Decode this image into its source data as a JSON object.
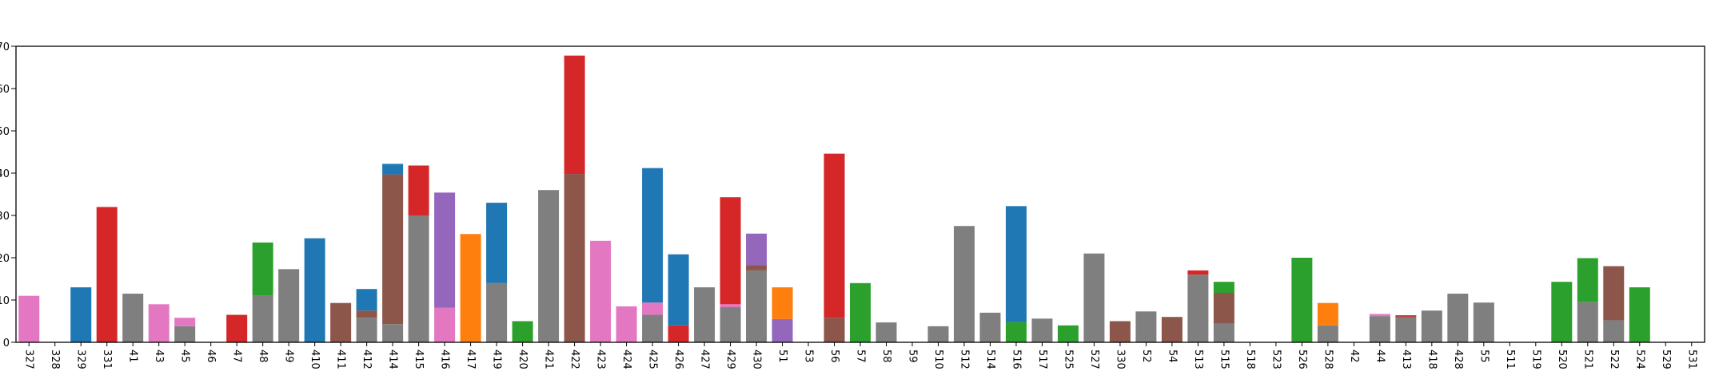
{
  "chart_data": {
    "type": "bar",
    "stacked": true,
    "title": "",
    "xlabel": "",
    "ylabel": "",
    "ylim": [
      0,
      70
    ],
    "y_ticks": [
      0,
      10,
      20,
      30,
      40,
      50,
      60,
      70
    ],
    "grid": false,
    "legend": "none",
    "categories": [
      "327",
      "328",
      "329",
      "331",
      "41",
      "43",
      "45",
      "46",
      "47",
      "48",
      "49",
      "410",
      "411",
      "412",
      "414",
      "415",
      "416",
      "417",
      "419",
      "420",
      "421",
      "422",
      "423",
      "424",
      "425",
      "426",
      "427",
      "429",
      "430",
      "51",
      "53",
      "56",
      "57",
      "58",
      "59",
      "510",
      "512",
      "514",
      "516",
      "517",
      "525",
      "527",
      "330",
      "52",
      "54",
      "513",
      "515",
      "518",
      "523",
      "526",
      "528",
      "42",
      "44",
      "413",
      "418",
      "428",
      "55",
      "511",
      "519",
      "520",
      "521",
      "522",
      "524",
      "529",
      "531"
    ],
    "series": [
      {
        "color": "#7f7f7f",
        "values": [
          0,
          0,
          0,
          0,
          11.5,
          0,
          3.8,
          0,
          0,
          11,
          17.3,
          0,
          0,
          5.8,
          4.3,
          30,
          0,
          0,
          14,
          0,
          36,
          0,
          0,
          0,
          6.5,
          0,
          13,
          8.3,
          17,
          0,
          0,
          0,
          0,
          4.7,
          0,
          3.8,
          27.5,
          7,
          0,
          5.6,
          0,
          21,
          0,
          7.3,
          0,
          16,
          4.4,
          0,
          0,
          0,
          4,
          0,
          6.2,
          5.8,
          7.5,
          11.5,
          9.4,
          0,
          0,
          0,
          9.5,
          5.2,
          0,
          0,
          0
        ]
      },
      {
        "color": "#8c564b",
        "values": [
          0,
          0,
          0,
          0,
          0,
          0,
          0,
          0,
          0,
          0,
          0,
          0,
          9.3,
          1.7,
          35.4,
          0,
          0,
          0,
          0,
          0,
          0,
          39.8,
          0,
          0,
          0,
          0,
          0,
          0,
          1.2,
          0,
          0,
          5.8,
          0,
          0,
          0,
          0,
          0,
          0,
          0,
          0,
          0,
          0,
          5,
          0,
          6,
          0,
          7.3,
          0,
          0,
          0,
          0,
          0,
          0,
          0.3,
          0,
          0,
          0,
          0,
          0,
          0,
          0,
          12.8,
          0,
          0,
          0
        ]
      },
      {
        "color": "#e377c2",
        "values": [
          11,
          0,
          0,
          0,
          0,
          9,
          2,
          0,
          0,
          0,
          0,
          0,
          0,
          0,
          0,
          0,
          8.2,
          0,
          0,
          0,
          0,
          0,
          24,
          8.5,
          2.9,
          0,
          0,
          0.7,
          0,
          0,
          0,
          0,
          0,
          0,
          0,
          0,
          0,
          0,
          0,
          0,
          0,
          0,
          0,
          0,
          0,
          0,
          0,
          0,
          0,
          0,
          0,
          0,
          0.5,
          0,
          0,
          0,
          0,
          0,
          0,
          0,
          0,
          0,
          0,
          0,
          0
        ]
      },
      {
        "color": "#2ca02c",
        "values": [
          0,
          0,
          0,
          0,
          0,
          0,
          0,
          0,
          0,
          12.6,
          0,
          0,
          0,
          0,
          0,
          0,
          0,
          0,
          0,
          5,
          0,
          0,
          0,
          0,
          0,
          0,
          0,
          0,
          0,
          0,
          0,
          0,
          14,
          0,
          0,
          0,
          0,
          0,
          4.8,
          0,
          4,
          0,
          0,
          0,
          0,
          0,
          2.6,
          0,
          0,
          20,
          0,
          0,
          0,
          0,
          0,
          0,
          0,
          0,
          0,
          14.3,
          10.4,
          0,
          13,
          0,
          0
        ]
      },
      {
        "color": "#d62728",
        "values": [
          0,
          0,
          0,
          32,
          0,
          0,
          0,
          0,
          6.5,
          0,
          0,
          0,
          0,
          0,
          0,
          11.8,
          0,
          0,
          0,
          0,
          0,
          28,
          0,
          0,
          0,
          4,
          0,
          25.3,
          0,
          0,
          0,
          38.8,
          0,
          0,
          0,
          0,
          0,
          0,
          0,
          0,
          0,
          0,
          0,
          0,
          0,
          1,
          0,
          0,
          0,
          0,
          0,
          0,
          0,
          0.3,
          0,
          0,
          0,
          0,
          0,
          0,
          0,
          0,
          0,
          0,
          0
        ]
      },
      {
        "color": "#1f77b4",
        "values": [
          0,
          0,
          13,
          0,
          0,
          0,
          0,
          0,
          0,
          0,
          0,
          24.6,
          0,
          5.1,
          2.5,
          0,
          0,
          0,
          19,
          0,
          0,
          0,
          0,
          0,
          31.8,
          16.8,
          0,
          0,
          0,
          0,
          0,
          0,
          0,
          0,
          0,
          0,
          0,
          0,
          27.4,
          0,
          0,
          0,
          0,
          0,
          0,
          0,
          0,
          0,
          0,
          0,
          0,
          0,
          0,
          0,
          0,
          0,
          0,
          0,
          0,
          0,
          0,
          0,
          0,
          0,
          0
        ]
      },
      {
        "color": "#9467bd",
        "values": [
          0,
          0,
          0,
          0,
          0,
          0,
          0,
          0,
          0,
          0,
          0,
          0,
          0,
          0,
          0,
          0,
          27.2,
          0,
          0,
          0,
          0,
          0,
          0,
          0,
          0,
          0,
          0,
          0,
          7.5,
          5.5,
          0,
          0,
          0,
          0,
          0,
          0,
          0,
          0,
          0,
          0,
          0,
          0,
          0,
          0,
          0,
          0,
          0,
          0,
          0,
          0,
          0,
          0,
          0,
          0,
          0,
          0,
          0,
          0,
          0,
          0,
          0,
          0,
          0,
          0,
          0
        ]
      },
      {
        "color": "#ff7f0e",
        "values": [
          0,
          0,
          0,
          0,
          0,
          0,
          0,
          0,
          0,
          0,
          0,
          0,
          0,
          0,
          0,
          0,
          0,
          25.6,
          0,
          0,
          0,
          0,
          0,
          0,
          0,
          0,
          0,
          0,
          0,
          7.5,
          0,
          0,
          0,
          0,
          0,
          0,
          0,
          0,
          0,
          0,
          0,
          0,
          0,
          0,
          0,
          0,
          0,
          0,
          0,
          0,
          5.3,
          0,
          0,
          0,
          0,
          0,
          0,
          0,
          0,
          0,
          0,
          0,
          0,
          0,
          0
        ]
      }
    ]
  }
}
